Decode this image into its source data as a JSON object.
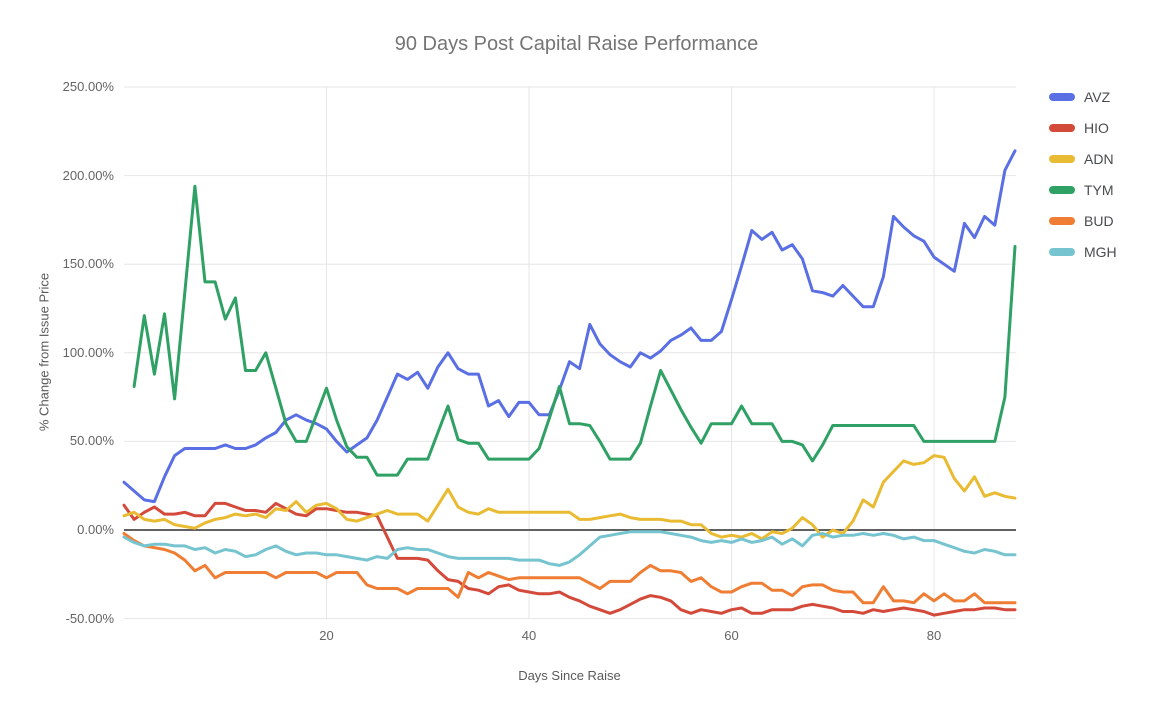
{
  "title": "90 Days Post Capital Raise Performance",
  "chart_data": {
    "type": "line",
    "title": "90 Days Post Capital Raise Performance",
    "xlabel": "Days Since Raise",
    "ylabel": "% Change from Issue Price",
    "unit": "percent",
    "x_range": [
      0,
      88
    ],
    "ylim": [
      -50,
      250
    ],
    "grid": true,
    "legend_position": "right",
    "zero_line_color": "#616161",
    "gridline_color": "#e6e6e6",
    "y_ticks": [
      {
        "value": 250,
        "label": "250.00%"
      },
      {
        "value": 200,
        "label": "200.00%"
      },
      {
        "value": 150,
        "label": "150.00%"
      },
      {
        "value": 100,
        "label": "100.00%"
      },
      {
        "value": 50,
        "label": "50.00%"
      },
      {
        "value": 0,
        "label": "0.00%"
      },
      {
        "value": -50,
        "label": "-50.00%"
      }
    ],
    "x_ticks": [
      {
        "value": 20,
        "label": "20"
      },
      {
        "value": 40,
        "label": "40"
      },
      {
        "value": 60,
        "label": "60"
      },
      {
        "value": 80,
        "label": "80"
      }
    ],
    "series": [
      {
        "name": "AVZ",
        "color": "#5A6FE3",
        "values": [
          27,
          22,
          17,
          16,
          30,
          42,
          46,
          46,
          46,
          46,
          48,
          46,
          46,
          48,
          52,
          55,
          62,
          65,
          62,
          60,
          57,
          50,
          44,
          48,
          52,
          62,
          75,
          88,
          85,
          89,
          80,
          92,
          100,
          91,
          88,
          88,
          70,
          73,
          64,
          72,
          72,
          65,
          65,
          79,
          95,
          91,
          116,
          105,
          99,
          95,
          92,
          100,
          97,
          101,
          107,
          110,
          114,
          107,
          107,
          112,
          130,
          149,
          169,
          164,
          168,
          158,
          161,
          153,
          135,
          134,
          132,
          138,
          132,
          126,
          126,
          143,
          177,
          171,
          166,
          163,
          154,
          150,
          146,
          173,
          165,
          177,
          172,
          203,
          214
        ]
      },
      {
        "name": "HIO",
        "color": "#D44A3A",
        "values": [
          14,
          6,
          10,
          13,
          9,
          9,
          10,
          8,
          8,
          15,
          15,
          13,
          11,
          11,
          10,
          15,
          12,
          9,
          8,
          12,
          12,
          11,
          10,
          10,
          9,
          8,
          -4,
          -16,
          -16,
          -16,
          -17,
          -23,
          -28,
          -29,
          -33,
          -34,
          -36,
          -32,
          -31,
          -34,
          -35,
          -36,
          -36,
          -35,
          -38,
          -40,
          -43,
          -45,
          -47,
          -45,
          -42,
          -39,
          -37,
          -38,
          -40,
          -45,
          -47,
          -45,
          -46,
          -47,
          -45,
          -44,
          -47,
          -47,
          -45,
          -45,
          -45,
          -43,
          -42,
          -43,
          -44,
          -46,
          -46,
          -47,
          -45,
          -46,
          -45,
          -44,
          -45,
          -46,
          -48,
          -47,
          -46,
          -45,
          -45,
          -44,
          -44,
          -45,
          -45
        ]
      },
      {
        "name": "ADN",
        "color": "#E9BB33",
        "values": [
          8,
          10,
          6,
          5,
          6,
          3,
          2,
          1,
          4,
          6,
          7,
          9,
          8,
          9,
          7,
          12,
          11,
          16,
          10,
          14,
          15,
          12,
          6,
          5,
          7,
          9,
          11,
          9,
          9,
          9,
          5,
          14,
          23,
          13,
          10,
          9,
          12,
          10,
          10,
          10,
          10,
          10,
          10,
          10,
          10,
          6,
          6,
          7,
          8,
          9,
          7,
          6,
          6,
          6,
          5,
          5,
          3,
          3,
          -2,
          -4,
          -3,
          -4,
          -2,
          -5,
          -1,
          -2,
          1,
          7,
          3,
          -4,
          0,
          -2,
          5,
          17,
          13,
          27,
          33,
          39,
          37,
          38,
          42,
          41,
          29,
          22,
          30,
          19,
          21,
          19,
          18
        ]
      },
      {
        "name": "TYM",
        "color": "#2FA164",
        "values": [
          null,
          81,
          121,
          88,
          122,
          74,
          134,
          194,
          140,
          140,
          119,
          131,
          90,
          90,
          100,
          80,
          60,
          50,
          50,
          65,
          80,
          62,
          47,
          41,
          41,
          31,
          31,
          31,
          40,
          40,
          40,
          55,
          70,
          51,
          49,
          49,
          40,
          40,
          40,
          40,
          40,
          46,
          63,
          81,
          60,
          60,
          59,
          50,
          40,
          40,
          40,
          49,
          70,
          90,
          79,
          68,
          58,
          49,
          60,
          60,
          60,
          70,
          60,
          60,
          60,
          50,
          50,
          48,
          39,
          48,
          59,
          59,
          59,
          59,
          59,
          59,
          59,
          59,
          59,
          50,
          50,
          50,
          50,
          50,
          50,
          50,
          50,
          75,
          160
        ]
      },
      {
        "name": "BUD",
        "color": "#EF7D33",
        "values": [
          -2,
          -6,
          -9,
          -10,
          -11,
          -13,
          -17,
          -23,
          -20,
          -27,
          -24,
          -24,
          -24,
          -24,
          -24,
          -27,
          -24,
          -24,
          -24,
          -24,
          -27,
          -24,
          -24,
          -24,
          -31,
          -33,
          -33,
          -33,
          -36,
          -33,
          -33,
          -33,
          -33,
          -38,
          -24,
          -27,
          -24,
          -26,
          -28,
          -27,
          -27,
          -27,
          -27,
          -27,
          -27,
          -27,
          -30,
          -33,
          -29,
          -29,
          -29,
          -24,
          -20,
          -23,
          -23,
          -24,
          -29,
          -27,
          -32,
          -35,
          -35,
          -32,
          -30,
          -30,
          -34,
          -34,
          -37,
          -32,
          -31,
          -31,
          -34,
          -35,
          -35,
          -41,
          -41,
          -32,
          -40,
          -40,
          -41,
          -36,
          -40,
          -36,
          -40,
          -40,
          -36,
          -41,
          -41,
          -41,
          -41
        ]
      },
      {
        "name": "MGH",
        "color": "#76C4CF",
        "values": [
          -4,
          -7,
          -9,
          -8,
          -8,
          -9,
          -9,
          -11,
          -10,
          -13,
          -11,
          -12,
          -15,
          -14,
          -11,
          -9,
          -12,
          -14,
          -13,
          -13,
          -14,
          -14,
          -15,
          -16,
          -17,
          -15,
          -16,
          -11,
          -10,
          -11,
          -11,
          -13,
          -15,
          -16,
          -16,
          -16,
          -16,
          -16,
          -16,
          -17,
          -17,
          -17,
          -19,
          -20,
          -18,
          -14,
          -9,
          -4,
          -3,
          -2,
          -1,
          -1,
          -1,
          -1,
          -2,
          -3,
          -4,
          -6,
          -7,
          -6,
          -7,
          -5,
          -7,
          -6,
          -4,
          -8,
          -5,
          -9,
          -3,
          -2,
          -4,
          -3,
          -3,
          -2,
          -3,
          -2,
          -3,
          -5,
          -4,
          -6,
          -6,
          -8,
          -10,
          -12,
          -13,
          -11,
          -12,
          -14,
          -14
        ]
      }
    ]
  }
}
